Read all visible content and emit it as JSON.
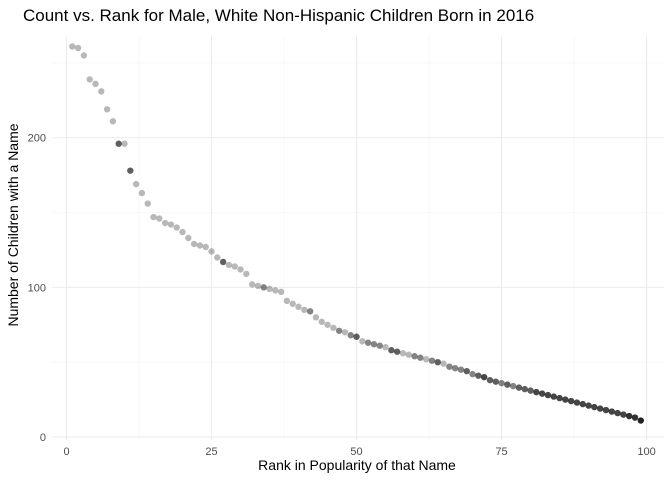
{
  "chart_data": {
    "type": "scatter",
    "title": "Count vs. Rank for Male, White Non-Hispanic Children Born in 2016",
    "xlabel": "Rank in Popularity of that Name",
    "ylabel": "Number of Children with a Name",
    "xlim": [
      -2.5,
      103
    ],
    "ylim": [
      -2,
      268
    ],
    "x_ticks": [
      0,
      25,
      50,
      75,
      100
    ],
    "y_ticks": [
      0,
      100,
      200
    ],
    "grid": true,
    "legend": "none",
    "point_color": "#000000",
    "point_opacity": 0.28,
    "x": [
      1,
      2,
      3,
      4,
      5,
      6,
      7,
      8,
      9,
      10,
      11,
      12,
      13,
      14,
      15,
      16,
      17,
      18,
      19,
      20,
      21,
      22,
      23,
      24,
      25,
      26,
      27,
      28,
      29,
      30,
      31,
      32,
      33,
      34,
      35,
      36,
      37,
      38,
      39,
      40,
      41,
      42,
      43,
      44,
      45,
      46,
      47,
      48,
      49,
      50,
      51,
      52,
      53,
      54,
      55,
      56,
      57,
      58,
      59,
      60,
      61,
      62,
      63,
      64,
      65,
      66,
      67,
      68,
      69,
      70,
      71,
      72,
      73,
      74,
      75,
      76,
      77,
      78,
      79,
      80,
      81,
      82,
      83,
      84,
      85,
      86,
      87,
      88,
      89,
      90,
      91,
      92,
      93,
      94,
      95,
      96,
      97,
      98,
      99
    ],
    "y": [
      261,
      260,
      255,
      239,
      236,
      231,
      219,
      211,
      196,
      196,
      178,
      169,
      163,
      156,
      147,
      146,
      143,
      142,
      140,
      137,
      133,
      129,
      128,
      127,
      124,
      120,
      117,
      115,
      114,
      112,
      109,
      102,
      101,
      100,
      99,
      98,
      97,
      91,
      89,
      87,
      85,
      84,
      80,
      77,
      75,
      73,
      71,
      70,
      68,
      67,
      64,
      63,
      62,
      61,
      60,
      58,
      57,
      56,
      55,
      54,
      53,
      52,
      51,
      50,
      49,
      47,
      46,
      45,
      44,
      42,
      41,
      40,
      38,
      37,
      36,
      35,
      34,
      33,
      32,
      31,
      30,
      29,
      28,
      27,
      26,
      25,
      24,
      23,
      22,
      21,
      20,
      19,
      18,
      17,
      16,
      15,
      14,
      13,
      11
    ],
    "overlap": [
      1,
      1,
      1,
      1,
      1,
      1,
      1,
      1,
      3,
      1,
      3,
      1,
      1,
      1,
      1,
      1,
      1,
      1,
      1,
      1,
      1,
      1,
      1,
      1,
      1,
      1,
      3,
      1,
      1,
      1,
      1,
      1,
      1,
      2,
      1,
      1,
      1,
      1,
      1,
      1,
      1,
      2,
      1,
      1,
      1,
      1,
      2,
      1,
      2,
      3,
      1,
      2,
      2,
      2,
      1,
      3,
      3,
      1,
      1,
      2,
      2,
      1,
      2,
      3,
      1,
      2,
      2,
      2,
      3,
      2,
      3,
      4,
      3,
      3,
      2,
      3,
      2,
      3,
      3,
      3,
      4,
      4,
      4,
      4,
      4,
      4,
      4,
      4,
      4,
      4,
      4,
      4,
      4,
      4,
      4,
      4,
      5,
      5,
      6
    ]
  }
}
